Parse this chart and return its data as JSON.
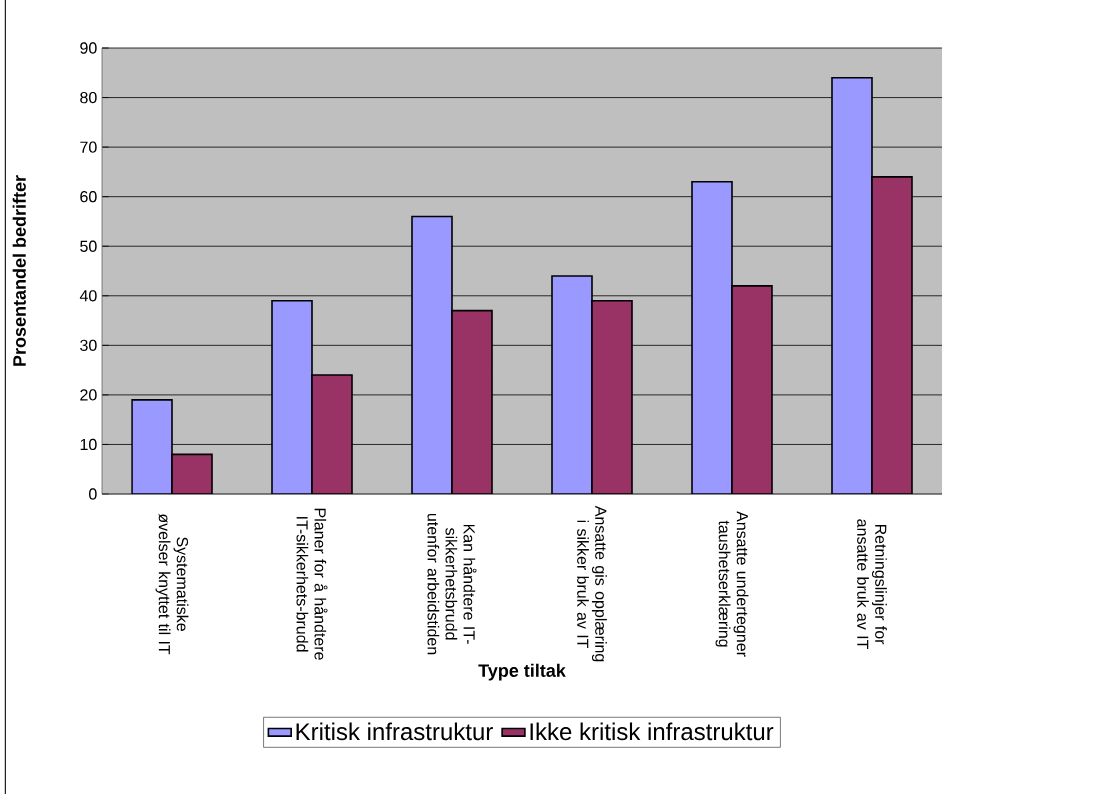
{
  "chart_data": {
    "type": "bar",
    "xlabel": "Type tiltak",
    "ylabel": "Prosentandel bedrifter",
    "categories": [
      "Systematiske øvelser knyttet til IT",
      "Planer for å håndtere IT-sikkerhets-brudd",
      "Kan håndtere IT-sikkerhetsbrudd utenfor arbeidstiden",
      "Ansatte gis opplæring i sikker bruk av IT",
      "Ansatte undertegner taushetserklæring",
      "Retningslinjer for ansatte bruk av IT"
    ],
    "series": [
      {
        "name": "Kritisk infrastruktur",
        "color": "#9999ff",
        "values": [
          19,
          39,
          56,
          44,
          63,
          84
        ]
      },
      {
        "name": "Ikke kritisk infrastruktur",
        "color": "#993366",
        "values": [
          8,
          24,
          37,
          39,
          42,
          64
        ]
      }
    ],
    "ylim": [
      0,
      90
    ],
    "yticks": [
      0,
      10,
      20,
      30,
      40,
      50,
      60,
      70,
      80,
      90
    ],
    "grid": "y",
    "legend": "bottom"
  }
}
